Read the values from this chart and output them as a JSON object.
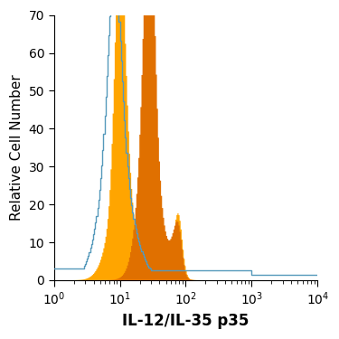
{
  "title": "",
  "xlabel": "IL-12/IL-35 p35",
  "ylabel": "Relative Cell Number",
  "xlim_log": [
    1,
    10000
  ],
  "ylim": [
    0,
    70
  ],
  "yticks": [
    0,
    10,
    20,
    30,
    40,
    50,
    60,
    70
  ],
  "color_light_orange": "#FFA500",
  "color_dark_orange": "#E07000",
  "color_blue": "#5599BB",
  "background": "#FFFFFF",
  "xlabel_fontsize": 12,
  "ylabel_fontsize": 11,
  "tick_fontsize": 10,
  "figsize": [
    3.75,
    3.75
  ],
  "dpi": 100
}
